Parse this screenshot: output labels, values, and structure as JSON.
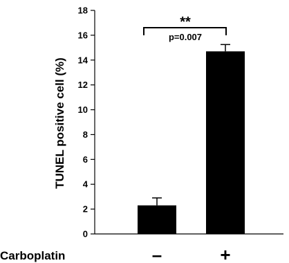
{
  "chart_data": {
    "type": "bar",
    "ylabel": "TUNEL positive cell (%)",
    "ylim": [
      0,
      18
    ],
    "yticks": [
      0,
      2,
      4,
      6,
      8,
      10,
      12,
      14,
      16,
      18
    ],
    "group_label": "Carboplatin",
    "categories": [
      "–",
      "+"
    ],
    "values": [
      2.3,
      14.7
    ],
    "errors": [
      0.6,
      0.55
    ],
    "bar_color": "#000000",
    "significance": {
      "stars": "**",
      "pvalue": "p=0.007"
    }
  }
}
